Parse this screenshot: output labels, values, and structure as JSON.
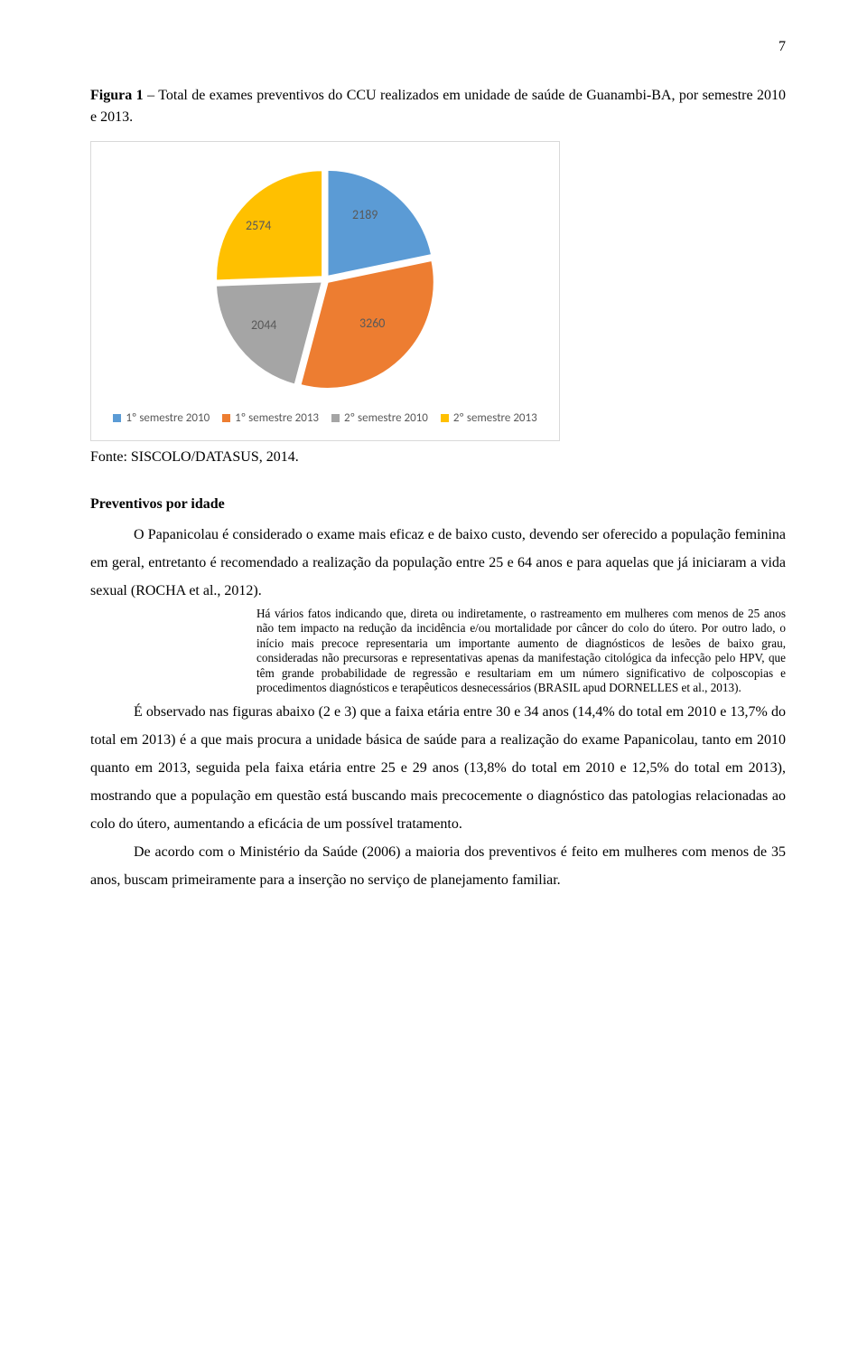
{
  "page_number": "7",
  "figure_caption_bold": "Figura 1",
  "figure_caption_rest": " – Total de exames preventivos do CCU realizados em unidade de saúde de Guanambi-BA, por semestre 2010 e 2013.",
  "chart": {
    "type": "pie",
    "background_color": "#ffffff",
    "border_color": "#d9d9d9",
    "label_color": "#595959",
    "label_fontsize": 14,
    "legend_fontsize": 13,
    "gap_color": "#ffffff",
    "slices": [
      {
        "label": "1º semestre 2010",
        "value": 2189,
        "color": "#5b9bd5"
      },
      {
        "label": "1º semestre 2013",
        "value": 3260,
        "color": "#ed7d31"
      },
      {
        "label": "2º semestre 2010",
        "value": 2044,
        "color": "#a5a5a5"
      },
      {
        "label": "2º semestre 2013",
        "value": 2574,
        "color": "#ffc000"
      }
    ],
    "data_labels": {
      "v2189": "2189",
      "v3260": "3260",
      "v2044": "2044",
      "v2574": "2574"
    }
  },
  "source_line": "Fonte: SISCOLO/DATASUS, 2014.",
  "section_head": "Preventivos por idade",
  "para1": "O Papanicolau é considerado o exame mais eficaz e de baixo custo, devendo ser oferecido a população feminina em geral, entretanto é recomendado a realização da população entre 25 e 64 anos e para aquelas que já iniciaram a vida sexual (ROCHA et al., 2012).",
  "block_quote": "Há vários fatos indicando que, direta ou indiretamente, o rastreamento em mulheres com menos de 25 anos não tem impacto na redução da incidência e/ou mortalidade por câncer do colo do útero. Por outro lado, o início mais precoce representaria um importante aumento de diagnósticos de lesões de baixo grau, consideradas não precursoras e representativas apenas da manifestação citológica da infecção pelo HPV, que têm grande probabilidade de regressão e resultariam em um número significativo de colposcopias e procedimentos diagnósticos e terapêuticos desnecessários (BRASIL apud DORNELLES et al., 2013).",
  "para2": "É observado nas figuras abaixo (2 e 3) que a faixa etária entre 30 e 34 anos (14,4% do total em 2010 e 13,7% do total em 2013) é a que mais procura a unidade básica de saúde para a realização do exame Papanicolau, tanto em 2010 quanto em 2013, seguida pela faixa etária entre 25 e 29 anos (13,8% do total em 2010 e 12,5% do total em 2013), mostrando que a população em questão está buscando mais precocemente o diagnóstico das patologias relacionadas ao colo do útero, aumentando a eficácia de um possível tratamento.",
  "para3": "De acordo com o Ministério da Saúde (2006) a maioria dos preventivos é feito em mulheres com menos de 35 anos, buscam primeiramente para a inserção no serviço de planejamento familiar."
}
